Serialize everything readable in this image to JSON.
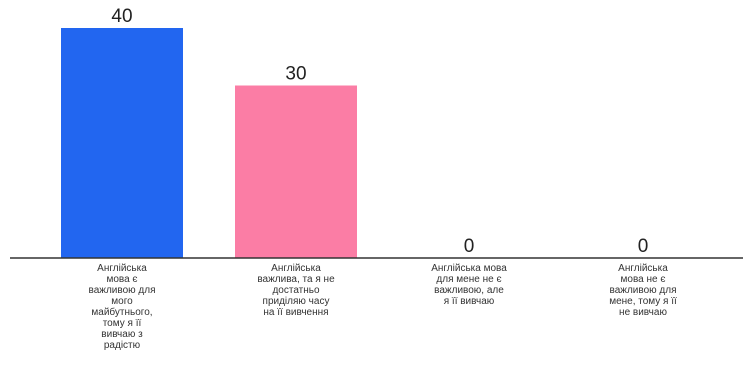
{
  "chart_data": {
    "type": "bar",
    "title": "",
    "xlabel": "",
    "ylabel": "",
    "ylim": [
      0,
      40
    ],
    "grid": false,
    "legend": "none",
    "categories": [
      [
        "Англійська",
        "мова є",
        "важливою для",
        "мого",
        "майбутнього,",
        "тому я її",
        "вивчаю з",
        "радістю"
      ],
      [
        "Англійська",
        "важлива, та я не",
        "достатньо",
        "приділяю часу",
        "на її вивчення"
      ],
      [
        "Англійська мова",
        "для мене не є",
        "важливою, але",
        "я її вивчаю"
      ],
      [
        "Англійська",
        "мова не є",
        "важливою для",
        "мене, тому я її",
        "не вивчаю"
      ]
    ],
    "values": [
      40,
      30,
      0,
      0
    ],
    "value_labels": [
      "40",
      "30",
      "0",
      "0"
    ],
    "colors": [
      "#2266f0",
      "#fb7da5",
      "#b0b0b0",
      "#b0b0b0"
    ]
  }
}
